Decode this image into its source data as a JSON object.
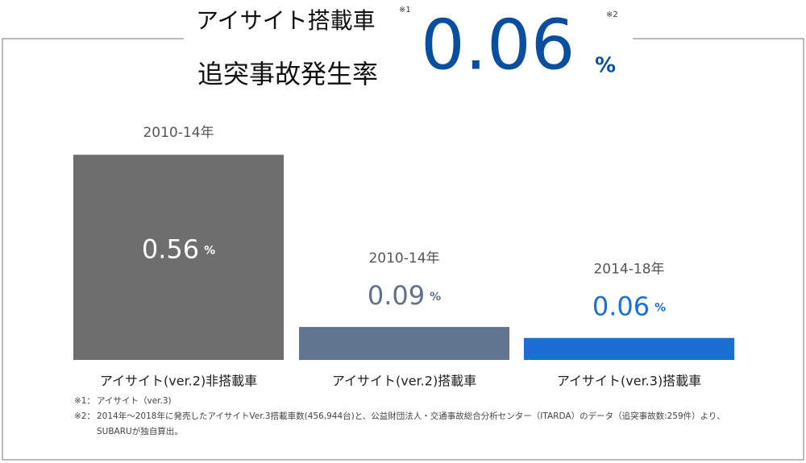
{
  "chart_data": {
    "type": "bar",
    "title": "アイサイト搭載車",
    "title_note": "※1",
    "subtitle": "追突事故発生率",
    "headline_value": 0.06,
    "headline_note": "※2",
    "unit": "%",
    "categories": [
      "アイサイト(ver.2)非搭載車",
      "アイサイト(ver.2)搭載車",
      "アイサイト(ver.3)搭載車"
    ],
    "periods": [
      "2010-14年",
      "2010-14年",
      "2014-18年"
    ],
    "values": [
      0.56,
      0.09,
      0.06
    ],
    "colors": [
      "#6e6e6e",
      "#617590",
      "#1b6fd2"
    ],
    "label_colors": [
      "#ffffff",
      "#5f7089",
      "#1b6fd2"
    ],
    "footnotes": [
      {
        "mark": "※1：",
        "text": "アイサイト（ver.3)"
      },
      {
        "mark": "※2：",
        "text": "2014年〜2018年に発売したアイサイトVer.3搭載車数(456,944台)と、公益財団法人・交通事故総合分析センター（ITARDA）のデータ（追突事故数:259件）より、SUBARUが独自算出。"
      }
    ]
  }
}
